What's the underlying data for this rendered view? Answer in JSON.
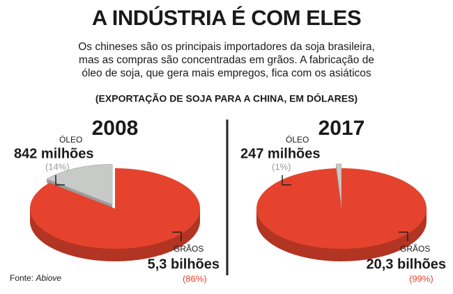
{
  "title": "A INDÚSTRIA É COM ELES",
  "subtitle": [
    "Os chineses são os principais importadores da soja brasileira,",
    "mas as compras são concentradas em grãos. A fabricação de",
    "óleo de soja, que gera mais empregos, fica com os asiáticos"
  ],
  "subheading": "(EXPORTAÇÃO DE SOJA PARA A CHINA, EM DÓLARES)",
  "source": {
    "label": "Fonte:",
    "name": "Abiove"
  },
  "chart_data": [
    {
      "type": "pie",
      "title": "2008",
      "categories": [
        "ÓLEO",
        "GRÃOS"
      ],
      "values": [
        14,
        86
      ],
      "value_labels": [
        "(14%)",
        "(86%)"
      ],
      "amount_labels": [
        "842 milhões",
        "5,3 bilhões"
      ],
      "colors": [
        "#c8cac8",
        "#e5432d"
      ]
    },
    {
      "type": "pie",
      "title": "2017",
      "categories": [
        "ÓLEO",
        "GRÃOS"
      ],
      "values": [
        1,
        99
      ],
      "value_labels": [
        "(1%)",
        "(99%)"
      ],
      "amount_labels": [
        "247 milhões",
        "20,3 bilhões"
      ],
      "colors": [
        "#c8cac8",
        "#e5432d"
      ]
    }
  ]
}
